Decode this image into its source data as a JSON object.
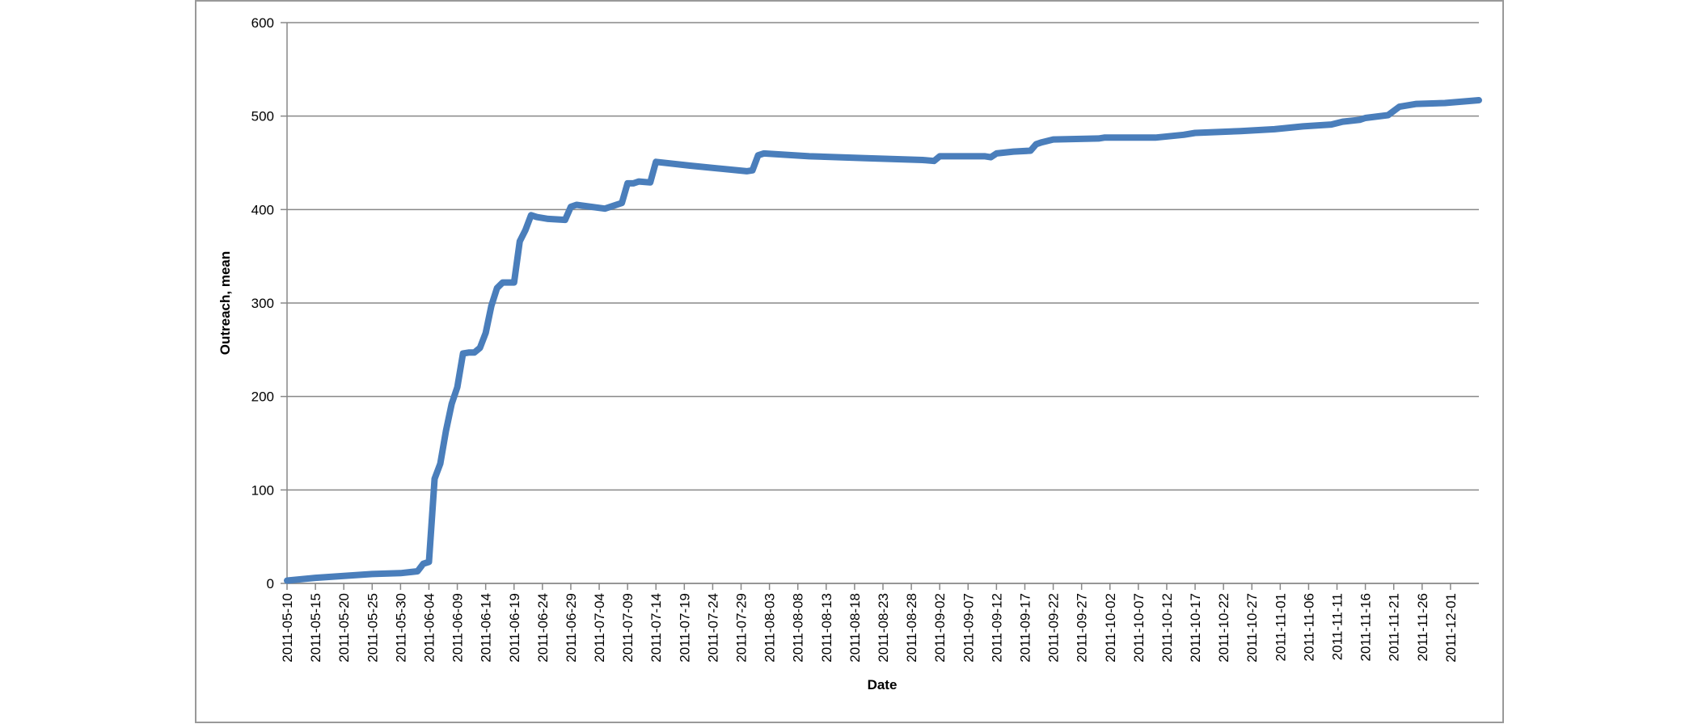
{
  "chart_data": {
    "type": "line",
    "x_label": "Date",
    "y_label": "Outreach, mean",
    "color": "#4a7ebb",
    "grid": true,
    "x": [
      "2011-05-10",
      "2011-05-15",
      "2011-05-20",
      "2011-05-25",
      "2011-05-30",
      "2011-06-02",
      "2011-06-03",
      "2011-06-04",
      "2011-06-05",
      "2011-06-06",
      "2011-06-07",
      "2011-06-08",
      "2011-06-09",
      "2011-06-10",
      "2011-06-11",
      "2011-06-12",
      "2011-06-13",
      "2011-06-14",
      "2011-06-15",
      "2011-06-16",
      "2011-06-17",
      "2011-06-18",
      "2011-06-19",
      "2011-06-20",
      "2011-06-21",
      "2011-06-22",
      "2011-06-23",
      "2011-06-25",
      "2011-06-28",
      "2011-06-29",
      "2011-06-30",
      "2011-07-05",
      "2011-07-08",
      "2011-07-09",
      "2011-07-10",
      "2011-07-11",
      "2011-07-13",
      "2011-07-14",
      "2011-07-20",
      "2011-07-30",
      "2011-07-31",
      "2011-08-01",
      "2011-08-02",
      "2011-08-10",
      "2011-08-20",
      "2011-08-30",
      "2011-09-01",
      "2011-09-02",
      "2011-09-10",
      "2011-09-11",
      "2011-09-12",
      "2011-09-15",
      "2011-09-18",
      "2011-09-19",
      "2011-09-20",
      "2011-09-22",
      "2011-09-30",
      "2011-10-01",
      "2011-10-10",
      "2011-10-15",
      "2011-10-17",
      "2011-10-25",
      "2011-10-31",
      "2011-11-05",
      "2011-11-10",
      "2011-11-12",
      "2011-11-15",
      "2011-11-16",
      "2011-11-20",
      "2011-11-22",
      "2011-11-25",
      "2011-11-30",
      "2011-12-06"
    ],
    "values": [
      3,
      6,
      8,
      10,
      11,
      13,
      21,
      23,
      112,
      128,
      163,
      192,
      210,
      246,
      247,
      247,
      252,
      268,
      297,
      316,
      322,
      322,
      322,
      366,
      378,
      394,
      392,
      390,
      389,
      403,
      405,
      401,
      407,
      428,
      428,
      430,
      429,
      451,
      447,
      441,
      442,
      458,
      460,
      457,
      455,
      453,
      452,
      457,
      457,
      456,
      460,
      462,
      463,
      470,
      472,
      475,
      476,
      477,
      477,
      480,
      482,
      484,
      486,
      489,
      491,
      494,
      496,
      498,
      501,
      510,
      513,
      514,
      517
    ],
    "xlim": [
      "2011-05-10",
      "2011-12-06"
    ],
    "xticks": [
      "2011-05-10",
      "2011-05-15",
      "2011-05-20",
      "2011-05-25",
      "2011-05-30",
      "2011-06-04",
      "2011-06-09",
      "2011-06-14",
      "2011-06-19",
      "2011-06-24",
      "2011-06-29",
      "2011-07-04",
      "2011-07-09",
      "2011-07-14",
      "2011-07-19",
      "2011-07-24",
      "2011-07-29",
      "2011-08-03",
      "2011-08-08",
      "2011-08-13",
      "2011-08-18",
      "2011-08-23",
      "2011-08-28",
      "2011-09-02",
      "2011-09-07",
      "2011-09-12",
      "2011-09-17",
      "2011-09-22",
      "2011-09-27",
      "2011-10-02",
      "2011-10-07",
      "2011-10-12",
      "2011-10-17",
      "2011-10-22",
      "2011-10-27",
      "2011-11-01",
      "2011-11-06",
      "2011-11-11",
      "2011-11-16",
      "2011-11-21",
      "2011-11-26",
      "2011-12-01"
    ],
    "ylim": [
      0,
      600
    ],
    "yticks": [
      0,
      100,
      200,
      300,
      400,
      500,
      600
    ]
  }
}
